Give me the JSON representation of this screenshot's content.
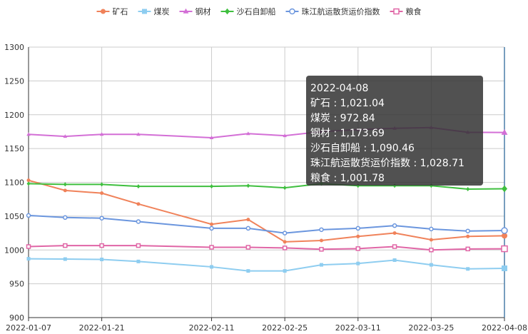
{
  "chart_data": {
    "type": "line",
    "x": [
      "2022-01-07",
      "2022-01-14",
      "2022-01-21",
      "2022-01-28",
      "2022-02-11",
      "2022-02-18",
      "2022-02-25",
      "2022-03-04",
      "2022-03-11",
      "2022-03-18",
      "2022-03-25",
      "2022-04-01",
      "2022-04-08"
    ],
    "x_tick_labels": [
      "2022-01-07",
      "2022-01-21",
      "2022-02-11",
      "2022-02-25",
      "2022-03-11",
      "2022-03-25",
      "2022-04-08"
    ],
    "ylim": [
      900,
      1300
    ],
    "y_ticks": [
      900,
      950,
      1000,
      1050,
      1100,
      1150,
      1200,
      1250,
      1300
    ],
    "legend_position": "top",
    "grid": true,
    "series": [
      {
        "name": "矿石",
        "color": "#f0825a",
        "marker": "circle",
        "values": [
          1103,
          1088,
          1084,
          1068,
          1038,
          1045,
          1012,
          1014,
          1020,
          1025,
          1015,
          1020,
          1021.04
        ]
      },
      {
        "name": "煤炭",
        "color": "#8ecdf0",
        "marker": "square",
        "values": [
          987,
          986.5,
          986,
          983,
          975,
          969,
          969,
          978,
          980,
          985,
          978,
          972,
          972.84
        ]
      },
      {
        "name": "钢材",
        "color": "#d36fd6",
        "marker": "triangle",
        "values": [
          1171,
          1168,
          1171,
          1171,
          1166,
          1172,
          1169,
          1175,
          1178,
          1180,
          1181,
          1174,
          1173.69
        ]
      },
      {
        "name": "沙石自卸船",
        "color": "#3fbf3f",
        "marker": "diamond",
        "values": [
          1098,
          1097,
          1097,
          1094,
          1094,
          1095,
          1092,
          1098,
          1095,
          1095,
          1095,
          1090,
          1090.46
        ]
      },
      {
        "name": "珠江航运散货运价指数",
        "color": "#6b96de",
        "marker": "ring",
        "values": [
          1051,
          1048,
          1047,
          1042,
          1032,
          1032,
          1025,
          1030,
          1032,
          1036,
          1031,
          1028,
          1028.71
        ]
      },
      {
        "name": "粮食",
        "color": "#e066a6",
        "marker": "ring-square",
        "values": [
          1005,
          1006.5,
          1006.5,
          1006.5,
          1004,
          1004,
          1003,
          1001,
          1002,
          1005,
          1000,
          1001.5,
          1001.78
        ]
      }
    ],
    "tooltip": {
      "title": "2022-04-08",
      "lines": [
        "矿石 : 1,021.04",
        "煤炭 : 972.84",
        "钢材 : 1,173.69",
        "沙石自卸船 : 1,090.46",
        "珠江航运散货运价指数 : 1,028.71",
        "粮食 : 1,001.78"
      ]
    }
  }
}
